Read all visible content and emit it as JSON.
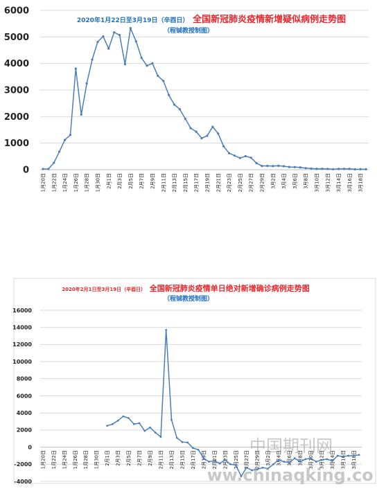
{
  "chart_data": [
    {
      "type": "line",
      "title_prefix": "2020年1月22日至3月19日（辛酉日）",
      "title_main": "全国新冠肺炎疫情新增疑似病例走势图",
      "subtitle": "（程铖教授制图）",
      "ylim": [
        0,
        6000
      ],
      "yticks": [
        0,
        1000,
        2000,
        3000,
        4000,
        5000,
        6000
      ],
      "grid": true,
      "legend": "none",
      "color": "#4a7ebb",
      "title_prefix_color": "#1f6fbf",
      "title_main_color": "#e8262b",
      "x_tick_labels": [
        "1月20日",
        "1月22日",
        "1月24日",
        "1月26日",
        "1月28日",
        "1月30日",
        "2月1日",
        "2月3日",
        "2月5日",
        "2月7日",
        "2月9日",
        "2月11日",
        "2月13日",
        "2月15日",
        "2月17日",
        "2月19日",
        "2月21日",
        "2月23日",
        "2月25日",
        "2月27日",
        "2月29日",
        "3月2日",
        "3月4日",
        "3月6日",
        "3月8日",
        "3月10日",
        "3月12日",
        "3月14日",
        "3月16日",
        "3月18日"
      ],
      "days": 60,
      "values": [
        27,
        27,
        257,
        680,
        1118,
        1309,
        3806,
        2077,
        3248,
        4148,
        4812,
        5019,
        4562,
        5173,
        5072,
        3971,
        5328,
        4833,
        4214,
        3916,
        4008,
        3536,
        3342,
        2807,
        2450,
        2277,
        1918,
        1563,
        1432,
        1185,
        1277,
        1614,
        1361,
        882,
        620,
        530,
        439,
        508,
        452,
        248,
        141,
        143,
        136,
        146,
        131,
        102,
        99,
        84,
        60,
        43,
        33,
        35,
        31,
        18,
        30,
        32,
        33,
        14,
        20,
        16
      ]
    },
    {
      "type": "line",
      "title_prefix": "2020年2月1日至3月19日（辛酉日）",
      "title_main": "全国新冠肺炎疫情单日绝对新增确诊病例走势图",
      "subtitle": "（程铖教授制图）",
      "ylim": [
        -4000,
        16000
      ],
      "yticks": [
        -4000,
        -2000,
        0,
        2000,
        4000,
        6000,
        8000,
        10000,
        12000,
        14000,
        16000
      ],
      "grid": true,
      "legend": "none",
      "color": "#4a7ebb",
      "title_prefix_color": "#e8262b",
      "title_main_color": "#e8262b",
      "x_tick_labels": [
        "1月20日",
        "1月22日",
        "1月24日",
        "1月26日",
        "1月28日",
        "1月30日",
        "2月1日",
        "2月3日",
        "2月5日",
        "2月7日",
        "2月9日",
        "2月11日",
        "2月13日",
        "2月15日",
        "2月17日",
        "2月19日",
        "2月21日",
        "2月23日",
        "2月25日",
        "2月27日",
        "2月29日",
        "3月2日",
        "3月4日",
        "3月6日",
        "3月8日",
        "3月10日",
        "3月12日",
        "3月14日",
        "3月16日",
        "3月18日"
      ],
      "days": 60,
      "values": [
        null,
        null,
        null,
        null,
        null,
        null,
        null,
        null,
        null,
        null,
        null,
        null,
        2500,
        2700,
        3100,
        3600,
        3400,
        2700,
        2800,
        1900,
        2300,
        1700,
        1200,
        13700,
        3200,
        1100,
        600,
        550,
        -100,
        -300,
        -1300,
        -1700,
        -1600,
        -1900,
        -1500,
        -2000,
        -2100,
        -3400,
        -2400,
        -2700,
        -2600,
        -2400,
        -2500,
        -2000,
        -1500,
        -1700,
        -1800,
        -1300,
        -1700,
        -1400,
        -1300,
        -1700,
        -1500,
        -1400,
        -1600,
        -1000,
        -1100,
        -1000,
        -1000,
        -900
      ]
    }
  ],
  "watermark": {
    "line1": "中国期刊网",
    "line2": "www.chinaqking.com"
  }
}
